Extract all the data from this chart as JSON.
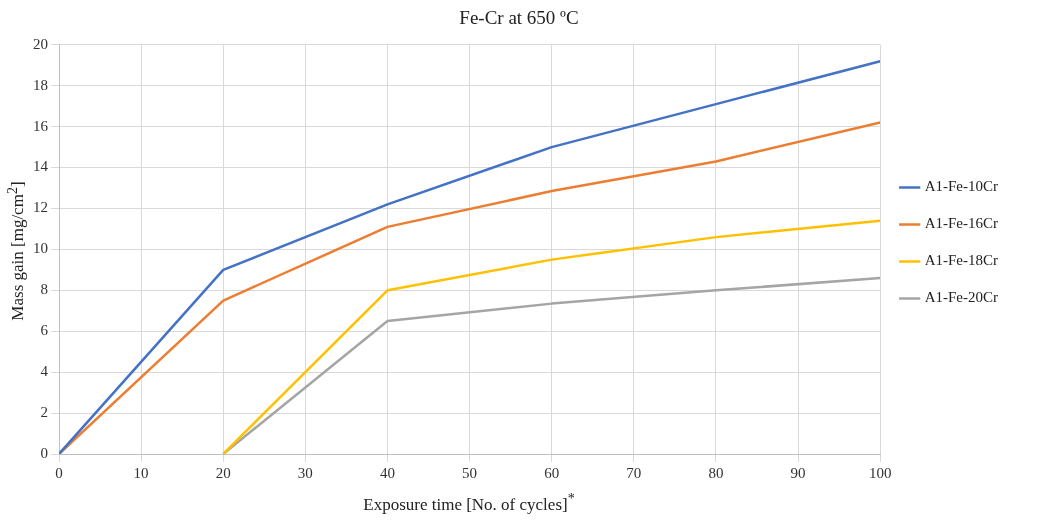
{
  "chart_data": {
    "type": "line",
    "title": "Fe-Cr at 650 ºC",
    "xlabel": "Exposure time [No. of cycles]$^{*}$",
    "ylabel": "Mass gain [mg/cm$^{2}$]",
    "x": [
      0,
      20,
      40,
      60,
      80,
      100
    ],
    "series": [
      {
        "name": "A1-Fe-10Cr",
        "color": "#4472c4",
        "values": [
          0,
          9.0,
          12.2,
          15.0,
          17.1,
          19.2
        ]
      },
      {
        "name": "A1-Fe-16Cr",
        "color": "#ed7d31",
        "values": [
          0,
          7.5,
          11.1,
          12.85,
          14.3,
          16.2
        ]
      },
      {
        "name": "A1-Fe-18Cr",
        "color": "#ffc000",
        "values": [
          null,
          0,
          8.0,
          9.5,
          10.6,
          11.4
        ]
      },
      {
        "name": "A1-Fe-20Cr",
        "color": "#a5a5a5",
        "values": [
          null,
          0,
          6.5,
          7.35,
          8.0,
          8.6
        ]
      }
    ],
    "xlim": [
      0,
      100
    ],
    "xticks": [
      0,
      10,
      20,
      30,
      40,
      50,
      60,
      70,
      80,
      90,
      100
    ],
    "ylim": [
      0,
      20
    ],
    "yticks": [
      0,
      2,
      4,
      6,
      8,
      10,
      12,
      14,
      16,
      18,
      20
    ],
    "grid": true,
    "legend": "right",
    "marker": "none",
    "line_style": "solid"
  }
}
